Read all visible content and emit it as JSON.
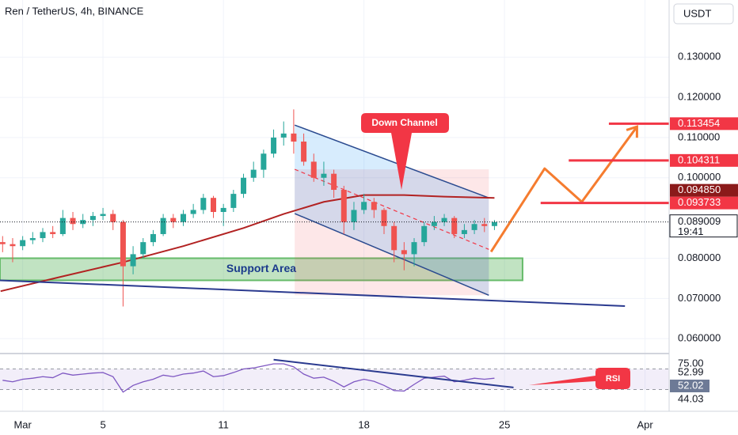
{
  "title": "Ren / TetherUS, 4h, BINANCE",
  "currency": "USDT",
  "chart_data": [
    {
      "type": "candlestick",
      "x": [
        0,
        0.5,
        1,
        1.5,
        2,
        2.5,
        3,
        3.5,
        4,
        4.5,
        5,
        5.5,
        6,
        6.5,
        7,
        7.5,
        8,
        8.5,
        9,
        9.5,
        10,
        10.5,
        11,
        11.5,
        12,
        12.5,
        13,
        13.5,
        14,
        14.5,
        15,
        15.5,
        16,
        16.5,
        17,
        17.5,
        18,
        18.5,
        19,
        19.5,
        20,
        20.5,
        21,
        21.5,
        22,
        22.5,
        23,
        23.5,
        24,
        24.5
      ],
      "open": [
        0.084,
        0.0835,
        0.083,
        0.0845,
        0.085,
        0.0865,
        0.086,
        0.09,
        0.0885,
        0.0895,
        0.0905,
        0.091,
        0.089,
        0.078,
        0.081,
        0.084,
        0.086,
        0.09,
        0.089,
        0.091,
        0.092,
        0.095,
        0.0915,
        0.0925,
        0.096,
        0.1,
        0.102,
        0.106,
        0.11,
        0.111,
        0.109,
        0.104,
        0.1,
        0.101,
        0.097,
        0.089,
        0.092,
        0.094,
        0.092,
        0.088,
        0.082,
        0.081,
        0.084,
        0.088,
        0.089,
        0.09,
        0.086,
        0.087,
        0.0885,
        0.088
      ],
      "high": [
        0.0855,
        0.085,
        0.0855,
        0.0865,
        0.0875,
        0.088,
        0.092,
        0.0915,
        0.091,
        0.0915,
        0.0925,
        0.092,
        0.0895,
        0.083,
        0.085,
        0.087,
        0.091,
        0.091,
        0.092,
        0.0935,
        0.096,
        0.0955,
        0.0935,
        0.097,
        0.101,
        0.104,
        0.107,
        0.112,
        0.114,
        0.117,
        0.111,
        0.106,
        0.104,
        0.102,
        0.098,
        0.094,
        0.096,
        0.095,
        0.0925,
        0.089,
        0.084,
        0.085,
        0.089,
        0.0905,
        0.091,
        0.0905,
        0.0885,
        0.0895,
        0.09,
        0.0895
      ],
      "low": [
        0.0815,
        0.079,
        0.082,
        0.0835,
        0.084,
        0.085,
        0.0855,
        0.087,
        0.0875,
        0.088,
        0.0895,
        0.087,
        0.068,
        0.076,
        0.08,
        0.083,
        0.0855,
        0.0875,
        0.088,
        0.09,
        0.091,
        0.09,
        0.088,
        0.0915,
        0.095,
        0.099,
        0.1,
        0.105,
        0.108,
        0.106,
        0.103,
        0.099,
        0.098,
        0.095,
        0.086,
        0.087,
        0.091,
        0.09,
        0.086,
        0.079,
        0.077,
        0.078,
        0.083,
        0.087,
        0.088,
        0.085,
        0.085,
        0.086,
        0.0865,
        0.087
      ],
      "close": [
        0.0835,
        0.083,
        0.0845,
        0.085,
        0.0865,
        0.086,
        0.09,
        0.0885,
        0.0895,
        0.0905,
        0.091,
        0.089,
        0.078,
        0.081,
        0.084,
        0.086,
        0.09,
        0.089,
        0.091,
        0.092,
        0.095,
        0.0915,
        0.0925,
        0.096,
        0.1,
        0.102,
        0.106,
        0.11,
        0.111,
        0.109,
        0.104,
        0.1,
        0.101,
        0.097,
        0.089,
        0.092,
        0.094,
        0.092,
        0.088,
        0.082,
        0.081,
        0.084,
        0.088,
        0.089,
        0.09,
        0.086,
        0.087,
        0.0885,
        0.088,
        0.089
      ],
      "up_color": "#26a69a",
      "down_color": "#ef5350",
      "xlim": [
        -0.13,
        33.2
      ],
      "xticks": [
        {
          "value": 1,
          "label": "Mar"
        },
        5,
        11,
        18,
        25,
        {
          "value": 32,
          "label": "Apr"
        }
      ],
      "ylim": [
        0.0563,
        0.1442
      ],
      "yticks": [
        {
          "value": 0.06,
          "label": "0.060000"
        },
        {
          "value": 0.07,
          "label": "0.070000"
        },
        {
          "value": 0.08,
          "label": "0.080000"
        },
        {
          "value": 0.1,
          "label": "0.100000"
        },
        {
          "value": 0.11,
          "label": "0.110000"
        },
        {
          "value": 0.12,
          "label": "0.120000"
        },
        {
          "value": 0.13,
          "label": "0.130000"
        }
      ],
      "grid": true,
      "moving_average": {
        "color": "#b22222",
        "x": [
          -0.1,
          3,
          6,
          9,
          12,
          14,
          16,
          18,
          20,
          22,
          24.5
        ],
        "values": [
          0.0718,
          0.0755,
          0.079,
          0.083,
          0.0875,
          0.091,
          0.094,
          0.0957,
          0.0957,
          0.0953,
          0.095
        ]
      },
      "current_price": {
        "value": 0.089009,
        "label": "0.089009",
        "countdown": "19:41"
      },
      "price_labels": [
        {
          "value": 0.113454,
          "label": "0.113454",
          "color": "#f23645",
          "line_from": 30.2
        },
        {
          "value": 0.104311,
          "label": "0.104311",
          "color": "#f23645",
          "line_from": 28.2
        },
        {
          "value": 0.09485,
          "label": "0.094850",
          "color": "#8b1a1a"
        },
        {
          "value": 0.093733,
          "label": "0.093733",
          "color": "#f23645",
          "line_from": 26.8
        }
      ],
      "drawings": {
        "channel_upper": {
          "x": [
            14.55,
            24.22
          ],
          "y": [
            0.1131,
            0.095
          ]
        },
        "channel_middle": {
          "x": [
            14.55,
            24.22
          ],
          "y": [
            0.1021,
            0.0822
          ]
        },
        "channel_lower": {
          "x": [
            14.55,
            24.22
          ],
          "y": [
            0.0911,
            0.0708
          ]
        },
        "support_area": {
          "x": [
            -0.13,
            25.9
          ],
          "y": [
            0.0745,
            0.08
          ]
        },
        "trendline": {
          "x": [
            -0.13,
            31.0
          ],
          "y": [
            0.0745,
            0.0681
          ]
        },
        "projection": {
          "x": [
            24.33,
            27.0,
            28.85,
            31.6
          ],
          "y": [
            0.0816,
            0.1023,
            0.094,
            0.1127
          ]
        }
      },
      "annotations": {
        "down_channel": "Down Channel",
        "support_area": "Support Area"
      }
    },
    {
      "type": "line",
      "name": "RSI",
      "x": [
        0,
        0.5,
        1,
        1.5,
        2,
        2.5,
        3,
        3.5,
        4,
        4.5,
        5,
        5.5,
        6,
        6.5,
        7,
        7.5,
        8,
        8.5,
        9,
        9.5,
        10,
        10.5,
        11,
        11.5,
        12,
        12.5,
        13,
        13.5,
        14,
        14.5,
        15,
        15.5,
        16,
        16.5,
        17,
        17.5,
        18,
        18.5,
        19,
        19.5,
        20,
        20.5,
        21,
        21.5,
        22,
        22.5,
        23,
        23.5,
        24,
        24.5
      ],
      "values": [
        48,
        45,
        50,
        52,
        55,
        53,
        62,
        58,
        60,
        62,
        63,
        55,
        25,
        38,
        45,
        50,
        58,
        55,
        60,
        62,
        66,
        55,
        57,
        63,
        70,
        72,
        76,
        80,
        80,
        74,
        60,
        52,
        54,
        46,
        35,
        45,
        50,
        46,
        38,
        28,
        27,
        40,
        52,
        54,
        56,
        45,
        48,
        52,
        50,
        52
      ],
      "color": "#7e57c2",
      "ylim": [
        0,
        100
      ],
      "band": [
        30,
        70
      ],
      "labels": [
        {
          "value": 75,
          "label": "75.00"
        },
        52.99,
        52.02,
        44.03
      ],
      "trendline": {
        "x": [
          13.5,
          25.45
        ],
        "y": [
          88,
          34
        ]
      },
      "annotation": "RSI"
    }
  ]
}
